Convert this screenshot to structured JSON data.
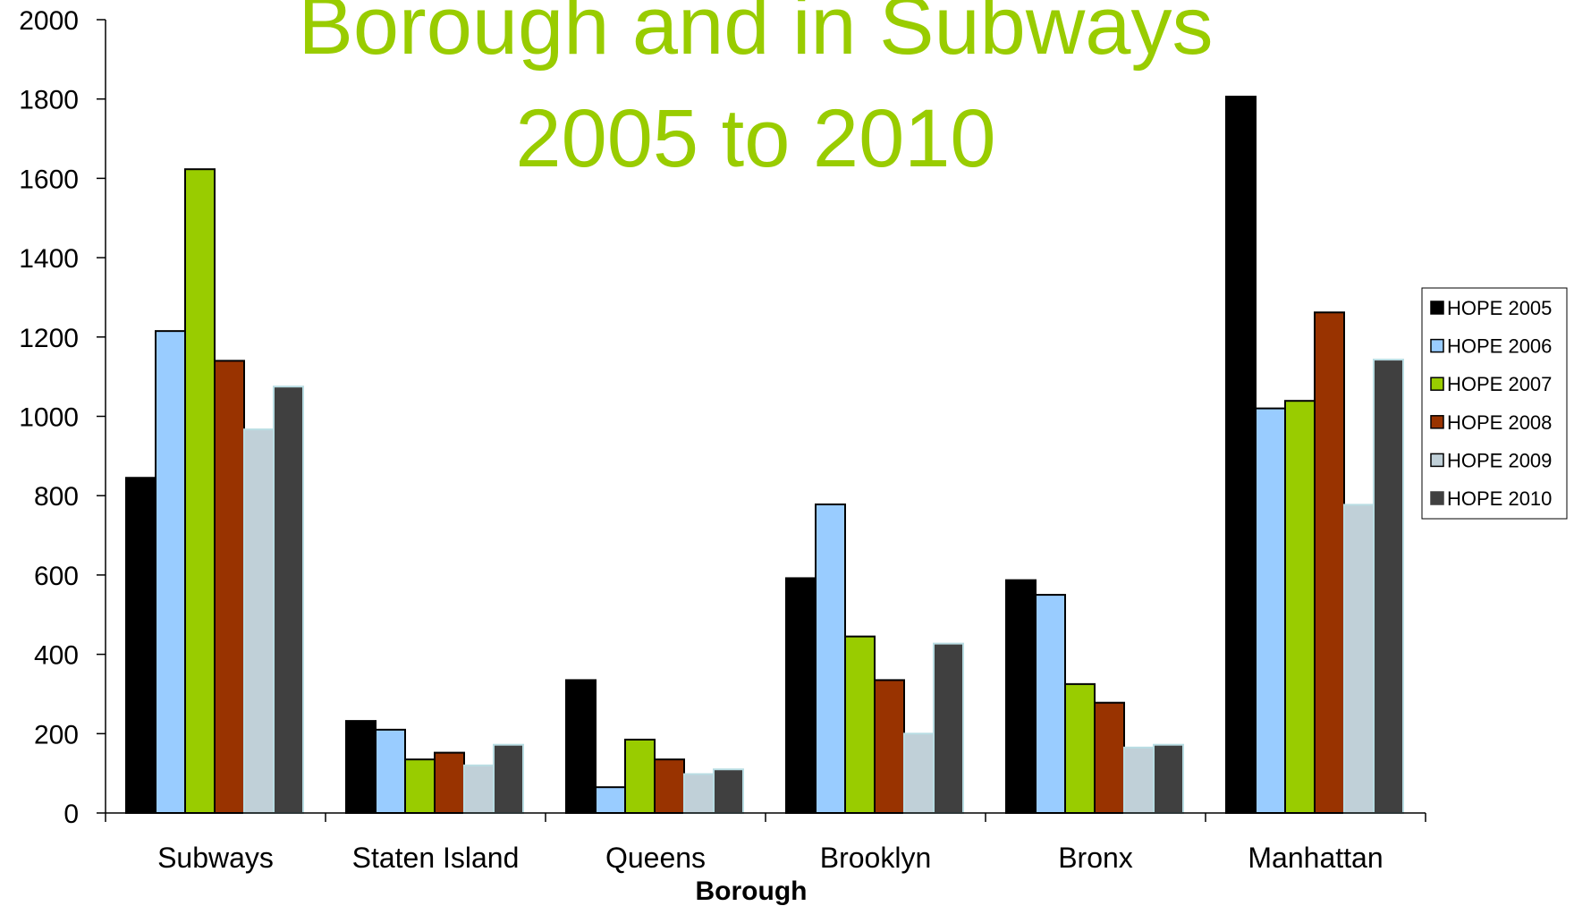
{
  "chart_data": {
    "type": "bar",
    "title_lines": [
      "Borough and in Subways",
      "2005 to 2010"
    ],
    "xlabel": "Borough",
    "ylabel": "",
    "ylim": [
      0,
      2000
    ],
    "yticks": [
      0,
      200,
      400,
      600,
      800,
      1000,
      1200,
      1400,
      1600,
      1800,
      2000
    ],
    "grid": false,
    "legend_position": "right",
    "categories": [
      "Subways",
      "Staten Island",
      "Queens",
      "Brooklyn",
      "Bronx",
      "Manhattan"
    ],
    "series": [
      {
        "name": "HOPE 2005",
        "color": "#000000",
        "values": [
          845,
          232,
          335,
          592,
          587,
          1806
        ]
      },
      {
        "name": "HOPE 2006",
        "color": "#99ccff",
        "values": [
          1215,
          210,
          65,
          778,
          550,
          1020
        ]
      },
      {
        "name": "HOPE 2007",
        "color": "#99cc00",
        "values": [
          1623,
          135,
          185,
          445,
          325,
          1039
        ]
      },
      {
        "name": "HOPE 2008",
        "color": "#993300",
        "values": [
          1140,
          152,
          135,
          335,
          278,
          1262
        ]
      },
      {
        "name": "HOPE 2009",
        "color": "#c0d0d8",
        "values": [
          967,
          120,
          98,
          200,
          165,
          777
        ]
      },
      {
        "name": "HOPE 2010",
        "color": "#404040",
        "values": [
          1075,
          172,
          110,
          427,
          172,
          1143
        ]
      }
    ]
  }
}
